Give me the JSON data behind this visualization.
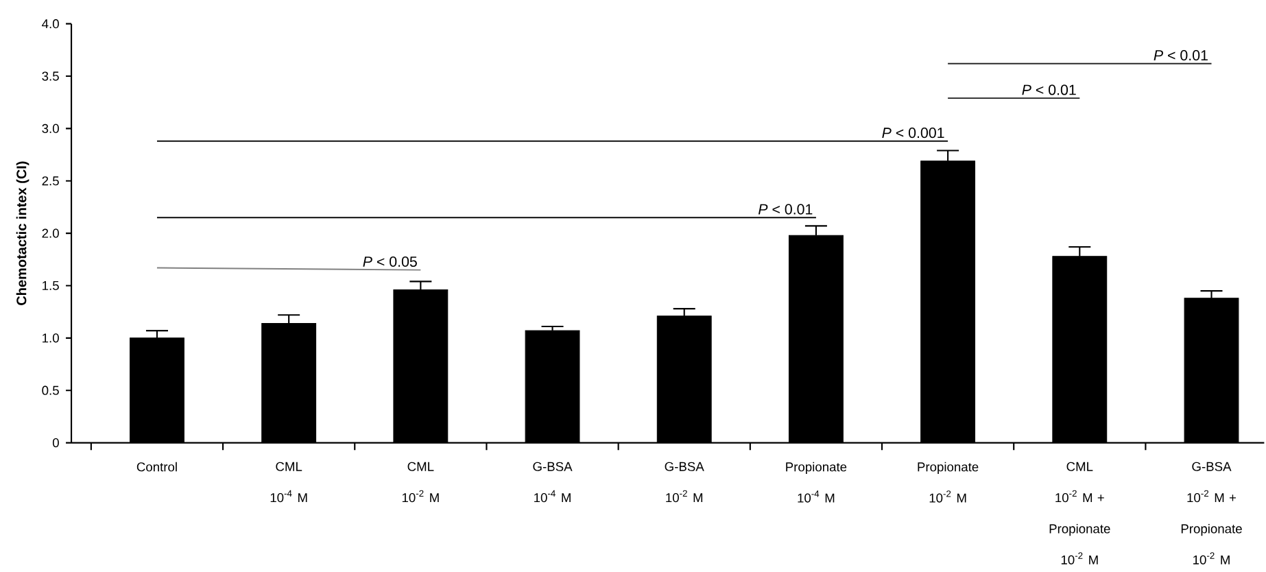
{
  "chart_data": {
    "type": "bar",
    "ylabel": "Chemotactic intex (CI)",
    "categories": [
      "Control",
      "CML 10$^{-4}$ M",
      "CML 10$^{-2}$ M",
      "G-BSA 10$^{-4}$ M",
      "G-BSA 10$^{-2}$ M",
      "Propionate 10$^{-4}$ M",
      "Propionate 10$^{-2}$ M",
      "CML 10$^{-2}$ M + Propionate 10$^{-2}$ M",
      "G-BSA 10$^{-2}$ M + Propionate 10$^{-2}$ M"
    ],
    "series": [
      {
        "color": "#000000",
        "values": [
          1.0,
          1.14,
          1.46,
          1.07,
          1.21,
          1.98,
          2.69,
          1.78,
          1.38
        ],
        "errors": [
          0.07,
          0.08,
          0.08,
          0.04,
          0.07,
          0.09,
          0.1,
          0.09,
          0.07
        ]
      },
      {
        "type": "line",
        "color": "#808080",
        "x": [
          "Control",
          "CML 10$^{-2}$ M"
        ],
        "values": [
          1.67,
          1.65
        ]
      },
      {
        "type": "line",
        "color": "#080808",
        "x": [
          "Control",
          "Propionate 10$^{-4}$ M"
        ],
        "values": [
          2.15,
          2.15
        ]
      },
      {
        "type": "line",
        "color": "#101010",
        "x": [
          "Control",
          "Propionate 10$^{-2}$ M"
        ],
        "values": [
          2.88,
          2.88
        ]
      },
      {
        "type": "line",
        "color": "#1c1c1c",
        "x": [
          "Propionate 10$^{-2}$ M",
          "CML 10$^{-2}$ M + Propionate 10$^{-2}$ M"
        ],
        "values": [
          3.29,
          3.29
        ]
      },
      {
        "type": "line",
        "color": "#282828",
        "x": [
          "Propionate 10$^{-2}$ M",
          "G-BSA 10$^{-2}$ M + Propionate 10$^{-2}$ M"
        ],
        "values": [
          3.62,
          3.62
        ]
      }
    ],
    "annotations": [
      "*P* < 0.05",
      "*P* < 0.01",
      "*P* < 0.001",
      "*P* < 0.01",
      "*P* < 0.01"
    ],
    "ylim": [
      0,
      4
    ],
    "yticks": [
      0,
      0.5,
      {
        "value": 1,
        "label": "1.0"
      },
      1.5,
      {
        "value": 2,
        "label": "2.0"
      },
      2.5,
      {
        "value": 3,
        "label": "3.0"
      },
      3.5,
      {
        "value": 4,
        "label": "4.0"
      }
    ],
    "grid": false
  }
}
